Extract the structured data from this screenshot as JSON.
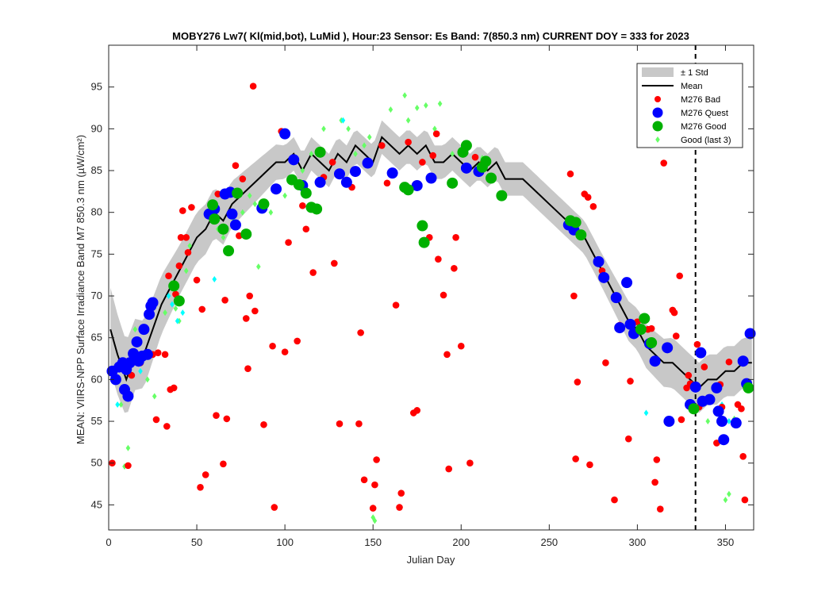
{
  "chart_data": {
    "type": "scatter",
    "title": "MOBY276   Lw7( Kl(mid,bot), LuMid ),   Hour:23 Sensor: Es Band: 7(850.3 nm)   CURRENT DOY = 333 for 2023",
    "xlabel": "Julian Day",
    "ylabel": "MEAN: VIIRS-NPP Surface Irradiance Band M7 850.3 nm (µW/cm²)",
    "xlim": [
      0,
      366
    ],
    "ylim": [
      42,
      100
    ],
    "xticks": [
      "0",
      "50",
      "100",
      "150",
      "200",
      "250",
      "300",
      "350"
    ],
    "yticks": [
      "45",
      "50",
      "55",
      "60",
      "65",
      "70",
      "75",
      "80",
      "85",
      "90",
      "95"
    ],
    "current_doy": 333,
    "legend_position": "top-right",
    "legend": [
      {
        "label": "± 1 Std",
        "kind": "patch",
        "color": "#c8c8c8"
      },
      {
        "label": "Mean",
        "kind": "line",
        "color": "#000000"
      },
      {
        "label": "M276 Bad",
        "kind": "dot",
        "color": "#ff0000"
      },
      {
        "label": "M276 Quest",
        "kind": "dot",
        "color": "#0000ff"
      },
      {
        "label": "M276 Good",
        "kind": "dot",
        "color": "#00b000"
      },
      {
        "label": "Good (last 3)",
        "kind": "diamond",
        "color": "#66ff66"
      }
    ],
    "mean": [
      [
        1,
        66
      ],
      [
        5,
        63
      ],
      [
        10,
        60
      ],
      [
        15,
        63
      ],
      [
        20,
        63
      ],
      [
        25,
        66
      ],
      [
        30,
        69
      ],
      [
        35,
        71
      ],
      [
        40,
        73
      ],
      [
        45,
        75
      ],
      [
        50,
        77
      ],
      [
        55,
        78
      ],
      [
        60,
        80
      ],
      [
        65,
        79
      ],
      [
        70,
        81
      ],
      [
        75,
        82
      ],
      [
        80,
        83
      ],
      [
        85,
        84
      ],
      [
        90,
        85
      ],
      [
        95,
        86
      ],
      [
        100,
        86
      ],
      [
        105,
        87
      ],
      [
        110,
        85
      ],
      [
        115,
        87
      ],
      [
        120,
        86
      ],
      [
        125,
        85
      ],
      [
        130,
        87
      ],
      [
        135,
        86
      ],
      [
        140,
        88
      ],
      [
        145,
        87
      ],
      [
        150,
        86
      ],
      [
        155,
        89
      ],
      [
        160,
        88
      ],
      [
        165,
        87
      ],
      [
        170,
        88
      ],
      [
        175,
        87
      ],
      [
        180,
        88
      ],
      [
        185,
        86
      ],
      [
        190,
        86
      ],
      [
        195,
        87
      ],
      [
        200,
        86
      ],
      [
        205,
        85
      ],
      [
        210,
        86
      ],
      [
        215,
        85
      ],
      [
        220,
        86
      ],
      [
        225,
        84
      ],
      [
        230,
        84
      ],
      [
        235,
        84
      ],
      [
        240,
        83
      ],
      [
        245,
        82
      ],
      [
        250,
        81
      ],
      [
        255,
        80
      ],
      [
        260,
        79
      ],
      [
        265,
        78
      ],
      [
        270,
        77
      ],
      [
        275,
        75
      ],
      [
        280,
        73
      ],
      [
        285,
        71
      ],
      [
        290,
        69
      ],
      [
        295,
        67
      ],
      [
        300,
        66
      ],
      [
        305,
        64
      ],
      [
        310,
        63
      ],
      [
        315,
        62
      ],
      [
        320,
        62
      ],
      [
        325,
        61
      ],
      [
        330,
        60
      ],
      [
        335,
        59
      ],
      [
        340,
        60
      ],
      [
        345,
        60
      ],
      [
        350,
        61
      ],
      [
        355,
        61
      ],
      [
        360,
        62
      ],
      [
        365,
        62
      ]
    ],
    "std": [
      [
        1,
        5
      ],
      [
        20,
        4
      ],
      [
        40,
        3
      ],
      [
        60,
        3
      ],
      [
        80,
        2.5
      ],
      [
        100,
        2
      ],
      [
        120,
        2
      ],
      [
        140,
        2
      ],
      [
        160,
        2
      ],
      [
        180,
        2
      ],
      [
        200,
        2
      ],
      [
        220,
        2
      ],
      [
        240,
        2
      ],
      [
        260,
        2
      ],
      [
        280,
        2
      ],
      [
        300,
        2.5
      ],
      [
        320,
        3
      ],
      [
        340,
        3
      ],
      [
        365,
        3
      ]
    ],
    "bad": [
      [
        2,
        50
      ],
      [
        11,
        49.7
      ],
      [
        13,
        60.5
      ],
      [
        18,
        62
      ],
      [
        25,
        63
      ],
      [
        27,
        55.2
      ],
      [
        28,
        63.2
      ],
      [
        32,
        63
      ],
      [
        33,
        54.4
      ],
      [
        34,
        72.4
      ],
      [
        35,
        58.8
      ],
      [
        37,
        59
      ],
      [
        38,
        70.2
      ],
      [
        40,
        73.6
      ],
      [
        41,
        77
      ],
      [
        42,
        80.2
      ],
      [
        44,
        77
      ],
      [
        45,
        75.2
      ],
      [
        47,
        80.6
      ],
      [
        50,
        71.9
      ],
      [
        52,
        47.1
      ],
      [
        53,
        68.4
      ],
      [
        55,
        48.6
      ],
      [
        61,
        55.7
      ],
      [
        62,
        82.2
      ],
      [
        65,
        49.9
      ],
      [
        66,
        69.5
      ],
      [
        67,
        55.3
      ],
      [
        72,
        85.6
      ],
      [
        74,
        77.2
      ],
      [
        76,
        84
      ],
      [
        78,
        67.3
      ],
      [
        79,
        61.3
      ],
      [
        80,
        70
      ],
      [
        82,
        95.1
      ],
      [
        83,
        68.2
      ],
      [
        88,
        54.6
      ],
      [
        93,
        64
      ],
      [
        94,
        44.7
      ],
      [
        98,
        89.7
      ],
      [
        100,
        63.3
      ],
      [
        102,
        76.4
      ],
      [
        107,
        64.6
      ],
      [
        110,
        80.8
      ],
      [
        112,
        78
      ],
      [
        116,
        72.8
      ],
      [
        120,
        87
      ],
      [
        122,
        84.2
      ],
      [
        127,
        86
      ],
      [
        128,
        73.9
      ],
      [
        131,
        54.7
      ],
      [
        138,
        83
      ],
      [
        142,
        54.7
      ],
      [
        143,
        65.6
      ],
      [
        145,
        48
      ],
      [
        147,
        85.8
      ],
      [
        150,
        44.6
      ],
      [
        151,
        47.4
      ],
      [
        152,
        50.4
      ],
      [
        155,
        88
      ],
      [
        158,
        83.5
      ],
      [
        163,
        68.9
      ],
      [
        165,
        44.7
      ],
      [
        166,
        46.4
      ],
      [
        170,
        88.4
      ],
      [
        173,
        56
      ],
      [
        175,
        56.3
      ],
      [
        178,
        86
      ],
      [
        182,
        77
      ],
      [
        184,
        86.8
      ],
      [
        186,
        89.4
      ],
      [
        187,
        74.4
      ],
      [
        190,
        70.1
      ],
      [
        192,
        63
      ],
      [
        193,
        49.3
      ],
      [
        196,
        73.3
      ],
      [
        197,
        77
      ],
      [
        200,
        64
      ],
      [
        205,
        50
      ],
      [
        208,
        86.6
      ],
      [
        212,
        85.8
      ],
      [
        262,
        84.6
      ],
      [
        264,
        70
      ],
      [
        265,
        50.5
      ],
      [
        266,
        59.7
      ],
      [
        270,
        82.2
      ],
      [
        272,
        81.8
      ],
      [
        273,
        49.8
      ],
      [
        275,
        80.7
      ],
      [
        280,
        73
      ],
      [
        282,
        62
      ],
      [
        287,
        45.6
      ],
      [
        290,
        66.5
      ],
      [
        295,
        52.9
      ],
      [
        296,
        59.8
      ],
      [
        300,
        66.9
      ],
      [
        306,
        66
      ],
      [
        308,
        66.1
      ],
      [
        310,
        47.7
      ],
      [
        311,
        50.4
      ],
      [
        313,
        44.5
      ],
      [
        315,
        85.9
      ],
      [
        320,
        68.3
      ],
      [
        321,
        68
      ],
      [
        322,
        65.2
      ],
      [
        324,
        72.4
      ],
      [
        325,
        55.2
      ],
      [
        328,
        59
      ],
      [
        329,
        60.5
      ],
      [
        330,
        59.5
      ],
      [
        334,
        64.2
      ],
      [
        335,
        56.7
      ],
      [
        338,
        61.5
      ],
      [
        340,
        57.6
      ],
      [
        345,
        52.4
      ],
      [
        347,
        59.4
      ],
      [
        348,
        56.7
      ],
      [
        352,
        62.1
      ],
      [
        357,
        57
      ],
      [
        359,
        56.5
      ],
      [
        360,
        50.8
      ],
      [
        361,
        45.6
      ]
    ],
    "quest": [
      [
        2,
        61
      ],
      [
        4,
        60
      ],
      [
        6,
        61.5
      ],
      [
        8,
        62
      ],
      [
        9,
        58.8
      ],
      [
        10,
        61.2
      ],
      [
        11,
        58
      ],
      [
        12,
        62
      ],
      [
        14,
        63.1
      ],
      [
        16,
        64.5
      ],
      [
        17,
        62.2
      ],
      [
        19,
        62.8
      ],
      [
        20,
        66
      ],
      [
        22,
        63
      ],
      [
        23,
        67.8
      ],
      [
        24,
        68.8
      ],
      [
        25,
        69.2
      ],
      [
        57,
        79.8
      ],
      [
        60,
        80.4
      ],
      [
        66,
        82.2
      ],
      [
        69,
        82.4
      ],
      [
        70,
        79.8
      ],
      [
        72,
        78.5
      ],
      [
        87,
        80.5
      ],
      [
        95,
        82.8
      ],
      [
        100,
        89.4
      ],
      [
        105,
        86.3
      ],
      [
        110,
        83.2
      ],
      [
        120,
        83.6
      ],
      [
        131,
        84.6
      ],
      [
        135,
        83.6
      ],
      [
        140,
        84.9
      ],
      [
        147,
        85.9
      ],
      [
        161,
        84.7
      ],
      [
        175,
        83.2
      ],
      [
        183,
        84.1
      ],
      [
        203,
        85.3
      ],
      [
        210,
        84.9
      ],
      [
        261,
        78.5
      ],
      [
        264,
        77.9
      ],
      [
        278,
        74.1
      ],
      [
        281,
        72.2
      ],
      [
        288,
        69.8
      ],
      [
        290,
        66.2
      ],
      [
        294,
        71.6
      ],
      [
        296,
        66.6
      ],
      [
        298,
        65.5
      ],
      [
        307,
        64.3
      ],
      [
        310,
        62.2
      ],
      [
        317,
        63.8
      ],
      [
        318,
        55
      ],
      [
        330,
        57
      ],
      [
        333,
        59.1
      ],
      [
        336,
        63.2
      ],
      [
        337,
        57.4
      ],
      [
        341,
        57.6
      ],
      [
        345,
        59
      ],
      [
        346,
        56.2
      ],
      [
        348,
        55
      ],
      [
        349,
        52.8
      ],
      [
        356,
        54.8
      ],
      [
        360,
        62.2
      ],
      [
        362,
        59.5
      ],
      [
        364,
        65.5
      ]
    ],
    "good": [
      [
        37,
        71.2
      ],
      [
        40,
        69.4
      ],
      [
        59,
        80.9
      ],
      [
        60,
        79.2
      ],
      [
        65,
        78
      ],
      [
        68,
        75.4
      ],
      [
        73,
        82.3
      ],
      [
        78,
        77.4
      ],
      [
        88,
        81
      ],
      [
        104,
        83.9
      ],
      [
        108,
        83.3
      ],
      [
        112,
        82.3
      ],
      [
        115,
        80.6
      ],
      [
        118,
        80.4
      ],
      [
        120,
        87.2
      ],
      [
        168,
        83
      ],
      [
        170,
        82.7
      ],
      [
        178,
        78.4
      ],
      [
        179,
        76.4
      ],
      [
        195,
        83.5
      ],
      [
        201,
        87.2
      ],
      [
        203,
        88
      ],
      [
        212,
        85.4
      ],
      [
        214,
        86.1
      ],
      [
        217,
        84.1
      ],
      [
        223,
        82
      ],
      [
        262,
        79
      ],
      [
        265,
        78.8
      ],
      [
        268,
        77.3
      ],
      [
        302,
        66
      ],
      [
        304,
        67.3
      ],
      [
        308,
        64.4
      ],
      [
        332,
        56.5
      ],
      [
        363,
        59
      ]
    ],
    "last3": [
      [
        7,
        57
      ],
      [
        9,
        49.6
      ],
      [
        11,
        51.8
      ],
      [
        15,
        66
      ],
      [
        22,
        60
      ],
      [
        26,
        58
      ],
      [
        32,
        68
      ],
      [
        38,
        68.5
      ],
      [
        40,
        67
      ],
      [
        44,
        73
      ],
      [
        46,
        76
      ],
      [
        62,
        78
      ],
      [
        65,
        77
      ],
      [
        71,
        79
      ],
      [
        76,
        80
      ],
      [
        80,
        82
      ],
      [
        83,
        81
      ],
      [
        85,
        73.5
      ],
      [
        88,
        81
      ],
      [
        92,
        80
      ],
      [
        100,
        82
      ],
      [
        110,
        85
      ],
      [
        115,
        87
      ],
      [
        122,
        90
      ],
      [
        132,
        91
      ],
      [
        136,
        90
      ],
      [
        140,
        87
      ],
      [
        145,
        88
      ],
      [
        148,
        89
      ],
      [
        150,
        43.5
      ],
      [
        151,
        43.1
      ],
      [
        160,
        92.3
      ],
      [
        168,
        94
      ],
      [
        170,
        91
      ],
      [
        175,
        92.5
      ],
      [
        180,
        92.8
      ],
      [
        185,
        90
      ],
      [
        188,
        93
      ],
      [
        195,
        87
      ],
      [
        212,
        86.5
      ],
      [
        340,
        55
      ],
      [
        350,
        45.6
      ],
      [
        352,
        46.3
      ],
      [
        355,
        55.3
      ]
    ],
    "last3_cyan": [
      [
        5,
        57
      ],
      [
        13,
        63
      ],
      [
        18,
        61
      ],
      [
        34,
        70
      ],
      [
        36,
        69
      ],
      [
        39,
        67
      ],
      [
        42,
        68
      ],
      [
        60,
        72
      ],
      [
        133,
        91
      ],
      [
        305,
        56
      ],
      [
        345,
        56
      ],
      [
        348,
        57
      ],
      [
        352,
        55
      ]
    ]
  }
}
